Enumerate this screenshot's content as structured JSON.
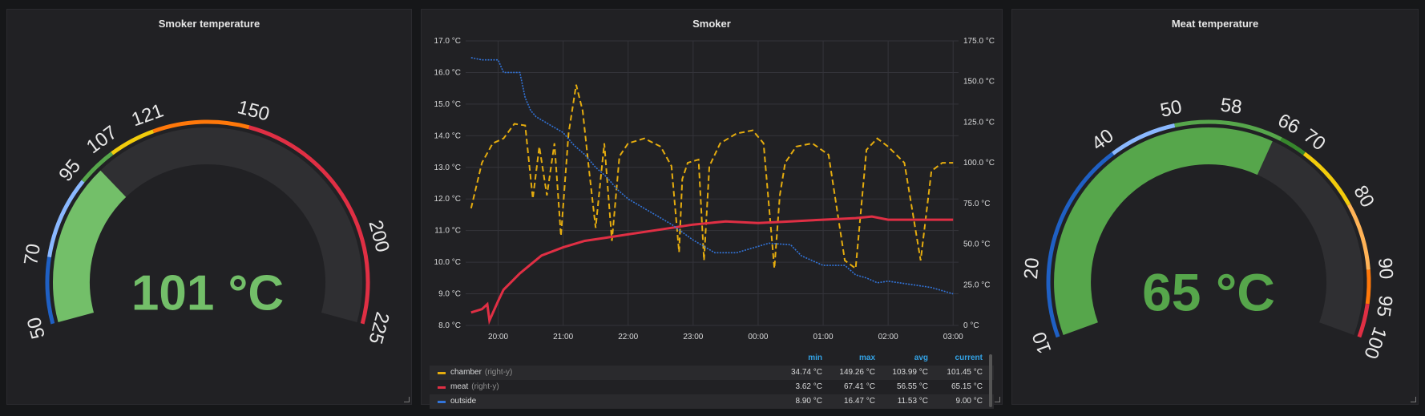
{
  "left_gauge": {
    "title": "Smoker temperature",
    "value_text": "101 °C",
    "value": 101,
    "min": 50,
    "max": 225,
    "tick_labels": [
      "50",
      "70",
      "95",
      "107",
      "121",
      "150",
      "200",
      "225"
    ],
    "value_color": "#73bf69"
  },
  "center_graph": {
    "title": "Smoker",
    "legend": {
      "headers": {
        "min": "min",
        "max": "max",
        "avg": "avg",
        "current": "current"
      },
      "series": [
        {
          "name": "chamber",
          "axis": "(right-y)",
          "color": "#e5ac0e",
          "min": "34.74 °C",
          "max": "149.26 °C",
          "avg": "103.99 °C",
          "current": "101.45 °C"
        },
        {
          "name": "meat",
          "axis": "(right-y)",
          "color": "#e02f44",
          "min": "3.62 °C",
          "max": "67.41 °C",
          "avg": "56.55 °C",
          "current": "65.15 °C"
        },
        {
          "name": "outside",
          "axis": "",
          "color": "#3274d9",
          "min": "8.90 °C",
          "max": "16.47 °C",
          "avg": "11.53 °C",
          "current": "9.00 °C"
        }
      ]
    }
  },
  "right_gauge": {
    "title": "Meat temperature",
    "value_text": "65 °C",
    "value": 65,
    "min": 10,
    "max": 100,
    "tick_labels": [
      "10",
      "20",
      "40",
      "50",
      "58",
      "66",
      "70",
      "80",
      "90",
      "95",
      "100"
    ],
    "value_color": "#56a64b"
  },
  "chart_data": {
    "type": "line",
    "title": "Smoker",
    "x_ticks": [
      "20:00",
      "21:00",
      "22:00",
      "23:00",
      "00:00",
      "01:00",
      "02:00",
      "03:00"
    ],
    "left_axis": {
      "ticks": [
        "8.0 °C",
        "9.0 °C",
        "10.0 °C",
        "11.0 °C",
        "12.0 °C",
        "13.0 °C",
        "14.0 °C",
        "15.0 °C",
        "16.0 °C",
        "17.0 °C"
      ],
      "ylim": [
        8,
        17
      ]
    },
    "right_axis": {
      "ticks": [
        "0 °C",
        "25.0 °C",
        "50.0 °C",
        "75.0 °C",
        "100.0 °C",
        "125.0 °C",
        "150.0 °C",
        "175.0 °C"
      ],
      "ylim": [
        0,
        175
      ]
    },
    "grid": true,
    "series": [
      {
        "name": "chamber",
        "axis": "right",
        "color": "#e5ac0e",
        "style": "dashed",
        "x": [
          "19:35",
          "19:45",
          "19:55",
          "20:05",
          "20:15",
          "20:25",
          "20:32",
          "20:38",
          "20:45",
          "20:52",
          "20:58",
          "21:05",
          "21:12",
          "21:18",
          "21:24",
          "21:30",
          "21:38",
          "21:45",
          "21:52",
          "22:00",
          "22:15",
          "22:30",
          "22:40",
          "22:47",
          "22:50",
          "22:55",
          "23:05",
          "23:10",
          "23:15",
          "23:25",
          "23:40",
          "23:55",
          "24:05",
          "24:15",
          "24:20",
          "24:25",
          "24:35",
          "24:50",
          "25:05",
          "25:20",
          "25:30",
          "25:40",
          "25:50",
          "26:00",
          "26:15",
          "26:30",
          "26:40",
          "26:50",
          "27:00"
        ],
        "y": [
          72,
          100,
          112,
          115,
          124,
          123,
          78,
          110,
          80,
          112,
          55,
          118,
          148,
          132,
          95,
          60,
          112,
          52,
          104,
          112,
          115,
          110,
          98,
          45,
          90,
          100,
          102,
          40,
          98,
          112,
          118,
          120,
          112,
          35,
          80,
          100,
          110,
          112,
          105,
          40,
          35,
          108,
          115,
          110,
          100,
          40,
          95,
          100,
          100
        ]
      },
      {
        "name": "meat",
        "axis": "right",
        "color": "#e02f44",
        "style": "solid",
        "x": [
          "19:35",
          "19:45",
          "19:50",
          "19:52",
          "20:00",
          "20:05",
          "20:20",
          "20:40",
          "21:00",
          "21:20",
          "21:40",
          "22:00",
          "22:30",
          "23:00",
          "23:30",
          "24:00",
          "24:30",
          "25:00",
          "25:30",
          "25:45",
          "26:00",
          "26:30",
          "27:00"
        ],
        "y": [
          8,
          10,
          13,
          3,
          15,
          22,
          32,
          43,
          48,
          52,
          54,
          56,
          59,
          62,
          64,
          63,
          64,
          65,
          66,
          67,
          65,
          65,
          65
        ]
      },
      {
        "name": "outside",
        "axis": "left",
        "color": "#3274d9",
        "style": "dotted",
        "x": [
          "19:35",
          "19:45",
          "20:00",
          "20:05",
          "20:20",
          "20:25",
          "20:30",
          "20:35",
          "20:45",
          "21:00",
          "21:10",
          "21:20",
          "21:30",
          "21:40",
          "21:50",
          "22:00",
          "22:20",
          "22:40",
          "23:00",
          "23:20",
          "23:40",
          "24:00",
          "24:10",
          "24:30",
          "24:40",
          "25:00",
          "25:20",
          "25:30",
          "25:40",
          "25:50",
          "26:00",
          "26:20",
          "26:40",
          "27:00"
        ],
        "y": [
          16.47,
          16.4,
          16.4,
          16.0,
          16.0,
          15.2,
          14.8,
          14.6,
          14.4,
          14.1,
          13.7,
          13.4,
          13.0,
          12.7,
          12.3,
          12.0,
          11.6,
          11.2,
          10.7,
          10.3,
          10.3,
          10.5,
          10.6,
          10.55,
          10.2,
          9.9,
          9.9,
          9.6,
          9.5,
          9.35,
          9.4,
          9.3,
          9.2,
          9.0
        ]
      }
    ]
  }
}
